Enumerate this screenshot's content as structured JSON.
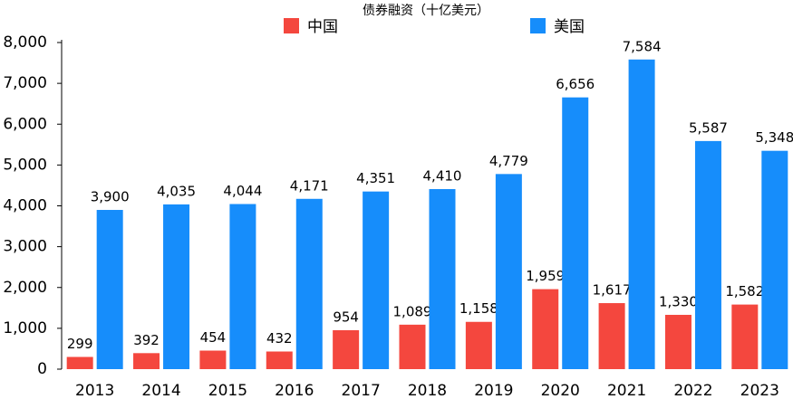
{
  "chart_data": {
    "type": "bar",
    "title": "债券融资（十亿美元）",
    "categories": [
      "2013",
      "2014",
      "2015",
      "2016",
      "2017",
      "2018",
      "2019",
      "2020",
      "2021",
      "2022",
      "2023"
    ],
    "series": [
      {
        "name": "中国",
        "color": "#f4473e",
        "values": [
          299,
          392,
          454,
          432,
          954,
          1089,
          1158,
          1959,
          1617,
          1330,
          1582
        ],
        "value_labels": [
          "299",
          "392",
          "454",
          "432",
          "954",
          "1,089",
          "1,158",
          "1,959",
          "1,617",
          "1,330",
          "1,582"
        ]
      },
      {
        "name": "美国",
        "color": "#168dfb",
        "values": [
          3900,
          4035,
          4044,
          4171,
          4351,
          4410,
          4779,
          6656,
          7584,
          5587,
          5348
        ],
        "value_labels": [
          "3,900",
          "4,035",
          "4,044",
          "4,171",
          "4,351",
          "4,410",
          "4,779",
          "6,656",
          "7,584",
          "5,587",
          "5,348"
        ]
      }
    ],
    "ylim": [
      0,
      8000
    ],
    "yticks": [
      0,
      {
        "value": 1000,
        "label": "1,000"
      },
      {
        "value": 2000,
        "label": "2,000"
      },
      {
        "value": 3000,
        "label": "3,000"
      },
      {
        "value": 4000,
        "label": "4,000"
      },
      {
        "value": 5000,
        "label": "5,000"
      },
      {
        "value": 6000,
        "label": "6,000"
      },
      {
        "value": 7000,
        "label": "7,000"
      },
      {
        "value": 8000,
        "label": "8,000"
      }
    ],
    "grid": false
  }
}
